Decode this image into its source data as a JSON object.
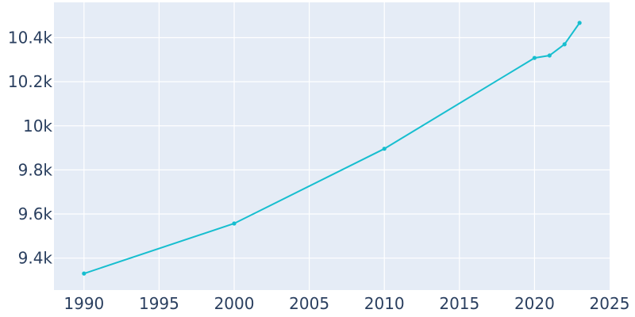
{
  "chart_data": {
    "type": "line",
    "title": "",
    "xlabel": "",
    "ylabel": "",
    "x_ticks": [
      1990,
      1995,
      2000,
      2005,
      2010,
      2015,
      2020,
      2025
    ],
    "x_tick_labels": [
      "1990",
      "1995",
      "2000",
      "2005",
      "2010",
      "2015",
      "2020",
      "2025"
    ],
    "y_ticks": [
      9400,
      9600,
      9800,
      10000,
      10200,
      10400
    ],
    "y_tick_labels": [
      "9.4k",
      "9.6k",
      "9.8k",
      "10k",
      "10.2k",
      "10.4k"
    ],
    "xlim": [
      1988,
      2025
    ],
    "ylim": [
      9255,
      10560
    ],
    "grid": true,
    "legend": "none",
    "colors": {
      "background": "#e5ecf6",
      "grid": "#ffffff",
      "line": "#17becf",
      "tick_text": "#2a3f5f"
    },
    "series": [
      {
        "x": [
          1990,
          2000,
          2010,
          2020,
          2021,
          2022,
          2023
        ],
        "y": [
          9330,
          9557,
          9896,
          10308,
          10319,
          10370,
          10467
        ]
      }
    ]
  }
}
